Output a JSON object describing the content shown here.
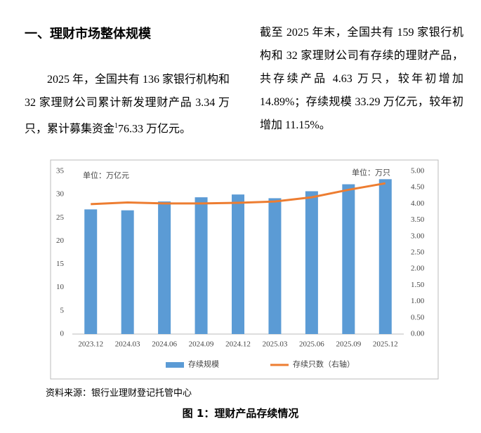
{
  "heading": "一、理财市场整体规模",
  "paragraph_left": {
    "text_before": "2025 年，全国共有 136 家银行机构和 32 家理财公司累计新发理财产品 3.34 万只，累计募集资金",
    "footnote_mark": "1",
    "text_after": "76.33 万亿元。"
  },
  "paragraph_right": "截至 2025 年末，全国共有 159 家银行机构和 32 家理财公司有存续的理财产品，共存续产品 4.63 万只，较年初增加 14.89%；存续规模 33.29 万亿元，较年初增加 11.15%。",
  "chart_data": {
    "type": "bar",
    "y_unit": "单位：万亿元",
    "y2_unit": "单位：万只",
    "categories": [
      "2023.12",
      "2024.03",
      "2024.06",
      "2024.09",
      "2024.12",
      "2025.03",
      "2025.06",
      "2025.09",
      "2025.12"
    ],
    "series": [
      {
        "name": "存续规模",
        "color": "#5b9bd5",
        "values": [
          26.8,
          26.6,
          28.5,
          29.4,
          30.0,
          29.2,
          30.7,
          32.2,
          33.29
        ]
      },
      {
        "name": "存续只数（右轴）",
        "color": "#ed7d31",
        "type": "line",
        "axis": "y2",
        "values": [
          3.99,
          4.04,
          4.01,
          4.01,
          4.03,
          4.07,
          4.2,
          4.43,
          4.63
        ]
      }
    ],
    "ylim": [
      0,
      35
    ],
    "yticks": [
      0,
      5,
      10,
      15,
      20,
      25,
      30,
      35
    ],
    "y2lim": [
      0,
      5
    ],
    "y2ticks": [
      {
        "value": 0,
        "label": "0.00"
      },
      {
        "value": 0.5,
        "label": "0.50"
      },
      {
        "value": 1,
        "label": "1.00"
      },
      {
        "value": 1.5,
        "label": "1.50"
      },
      {
        "value": 2,
        "label": "2.00"
      },
      {
        "value": 2.5,
        "label": "2.50"
      },
      {
        "value": 3,
        "label": "3.00"
      },
      {
        "value": 3.5,
        "label": "3.50"
      },
      {
        "value": 4,
        "label": "4.00"
      },
      {
        "value": 4.5,
        "label": "4.50"
      },
      {
        "value": 5,
        "label": "5.00"
      }
    ],
    "legend": "bottom"
  },
  "source": "资料来源：银行业理财登记托管中心",
  "caption": "图 1：理财产品存续情况"
}
